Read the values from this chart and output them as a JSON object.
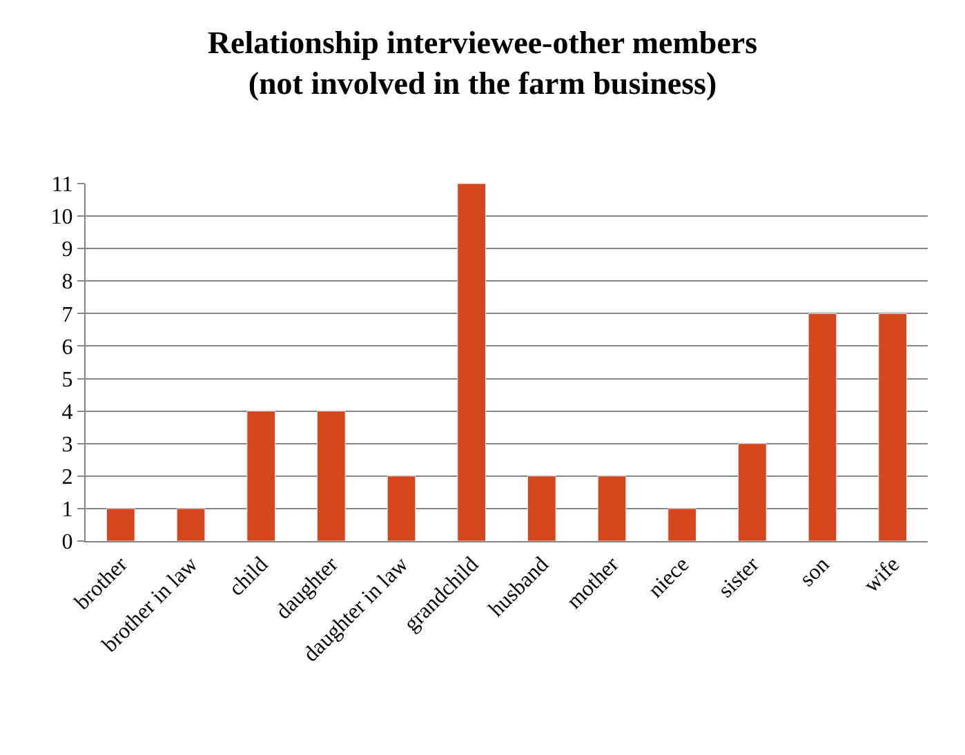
{
  "chart_data": {
    "type": "bar",
    "title": "Relationship interviewee-other members\n(not involved in the farm business)",
    "categories": [
      "brother",
      "brother in law",
      "child",
      "daughter",
      "daughter in law",
      "grandchild",
      "husband",
      "mother",
      "niece",
      "sister",
      "son",
      "wife"
    ],
    "values": [
      1,
      1,
      4,
      4,
      2,
      11,
      2,
      2,
      1,
      3,
      7,
      7
    ],
    "color": "#d4461b",
    "ylim": [
      0,
      11
    ],
    "yticks": [
      0,
      1,
      2,
      3,
      4,
      5,
      6,
      7,
      8,
      9,
      10,
      11
    ],
    "grid": "y",
    "legend": false
  }
}
